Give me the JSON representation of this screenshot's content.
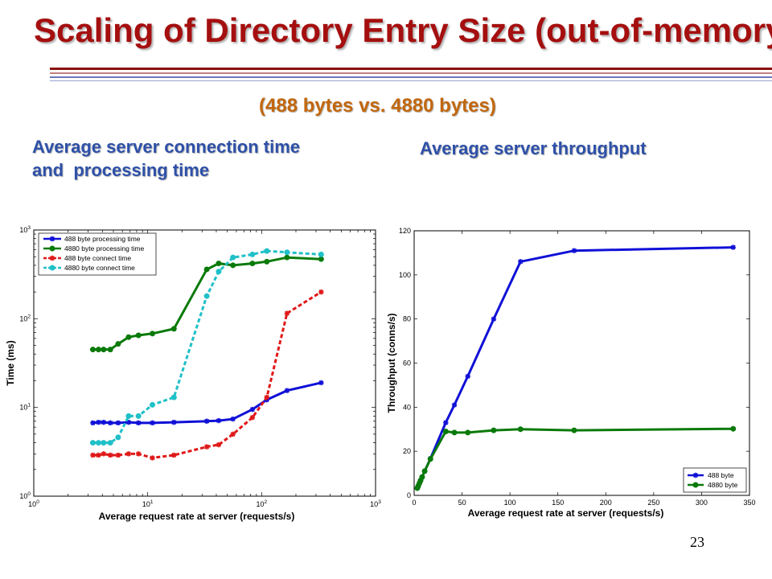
{
  "slide": {
    "title": "Scaling of Directory Entry Size (out-of-memory)",
    "subtitle": "(488 bytes vs. 4880 bytes)",
    "left_caption_line1": "Average server connection time",
    "left_caption_line2": "and  processing time",
    "right_caption": "Average server throughput",
    "page_number": "23"
  },
  "colors": {
    "title": "#a50f0f",
    "subtitle": "#c2670d",
    "caption": "#2e50a8",
    "blue": "#1010d8",
    "green": "#0a7a0a",
    "red": "#e01818",
    "cyan": "#20c0c8"
  },
  "chart_data": [
    {
      "type": "line",
      "xlabel": "Average request rate at server (requests/s)",
      "ylabel": "Time (ms)",
      "xscale": "log",
      "yscale": "log",
      "xlim": [
        1,
        1000
      ],
      "ylim": [
        1,
        1000
      ],
      "x_ticks": [
        "10^0",
        "10^1",
        "10^2",
        "10^3"
      ],
      "y_ticks": [
        "10^0",
        "10^1",
        "10^2",
        "10^3"
      ],
      "grid": false,
      "legend_position": "top-left",
      "series": [
        {
          "name": "488 byte processing time",
          "color": "#1010d8",
          "dashed": false,
          "marker": "star",
          "x": [
            3.3,
            3.7,
            4.1,
            4.7,
            5.5,
            6.8,
            8.3,
            11,
            17,
            33,
            42,
            56,
            83,
            111,
            167,
            333
          ],
          "y": [
            6.7,
            6.8,
            6.8,
            6.7,
            6.7,
            6.8,
            6.7,
            6.7,
            6.8,
            7.0,
            7.1,
            7.4,
            9.5,
            12.2,
            15.5,
            19
          ]
        },
        {
          "name": "4880 byte processing time",
          "color": "#0a7a0a",
          "dashed": false,
          "marker": "circle",
          "x": [
            3.3,
            3.7,
            4.1,
            4.7,
            5.5,
            6.8,
            8.3,
            11,
            17,
            33,
            42,
            56,
            83,
            111,
            167,
            333
          ],
          "y": [
            45,
            45,
            45,
            45,
            52,
            62,
            65,
            68,
            77,
            360,
            420,
            400,
            420,
            440,
            490,
            470
          ]
        },
        {
          "name": "488 byte connect time",
          "color": "#e01818",
          "dashed": true,
          "marker": "star",
          "x": [
            3.3,
            3.7,
            4.1,
            4.7,
            5.5,
            6.8,
            8.3,
            11,
            17,
            33,
            42,
            56,
            83,
            111,
            167,
            333
          ],
          "y": [
            2.9,
            2.9,
            3.0,
            2.9,
            2.9,
            3.0,
            3.0,
            2.7,
            2.9,
            3.6,
            3.8,
            5.0,
            7.7,
            13,
            115,
            200
          ]
        },
        {
          "name": "4880 byte connect time",
          "color": "#20c0c8",
          "dashed": true,
          "marker": "circle",
          "x": [
            3.3,
            3.7,
            4.1,
            4.7,
            5.5,
            6.8,
            8.3,
            11,
            17,
            33,
            42,
            56,
            83,
            111,
            167,
            333
          ],
          "y": [
            4.0,
            4.0,
            4.0,
            4.0,
            4.6,
            8.0,
            8.0,
            10.7,
            13,
            180,
            340,
            490,
            530,
            580,
            560,
            530
          ]
        }
      ]
    },
    {
      "type": "line",
      "xlabel": "Average request rate at server (requests/s)",
      "ylabel": "Throughput (conns/s)",
      "xlim": [
        0,
        350
      ],
      "ylim": [
        0,
        120
      ],
      "x_ticks": [
        0,
        50,
        100,
        150,
        200,
        250,
        300,
        350
      ],
      "y_ticks": [
        0,
        20,
        40,
        60,
        80,
        100,
        120
      ],
      "grid": false,
      "legend_position": "bottom-right",
      "series": [
        {
          "name": "488 byte",
          "color": "#1010d8",
          "marker": "star",
          "x": [
            3.3,
            4.2,
            5.5,
            6.7,
            8.3,
            11,
            17,
            33,
            42,
            56,
            83,
            111,
            167,
            333
          ],
          "y": [
            3.3,
            4.2,
            5.5,
            6.7,
            8.3,
            11,
            16.7,
            33,
            41,
            54,
            80,
            106,
            111,
            112.5
          ]
        },
        {
          "name": "4880 byte",
          "color": "#0a7a0a",
          "marker": "circle",
          "x": [
            3.3,
            4.2,
            5.5,
            6.7,
            8.3,
            11,
            17,
            33,
            42,
            56,
            83,
            111,
            167,
            333
          ],
          "y": [
            3.3,
            4.2,
            5.5,
            6.7,
            8.3,
            11,
            16.5,
            29,
            28.5,
            28.5,
            29.5,
            30,
            29.5,
            30.2
          ]
        }
      ]
    }
  ]
}
